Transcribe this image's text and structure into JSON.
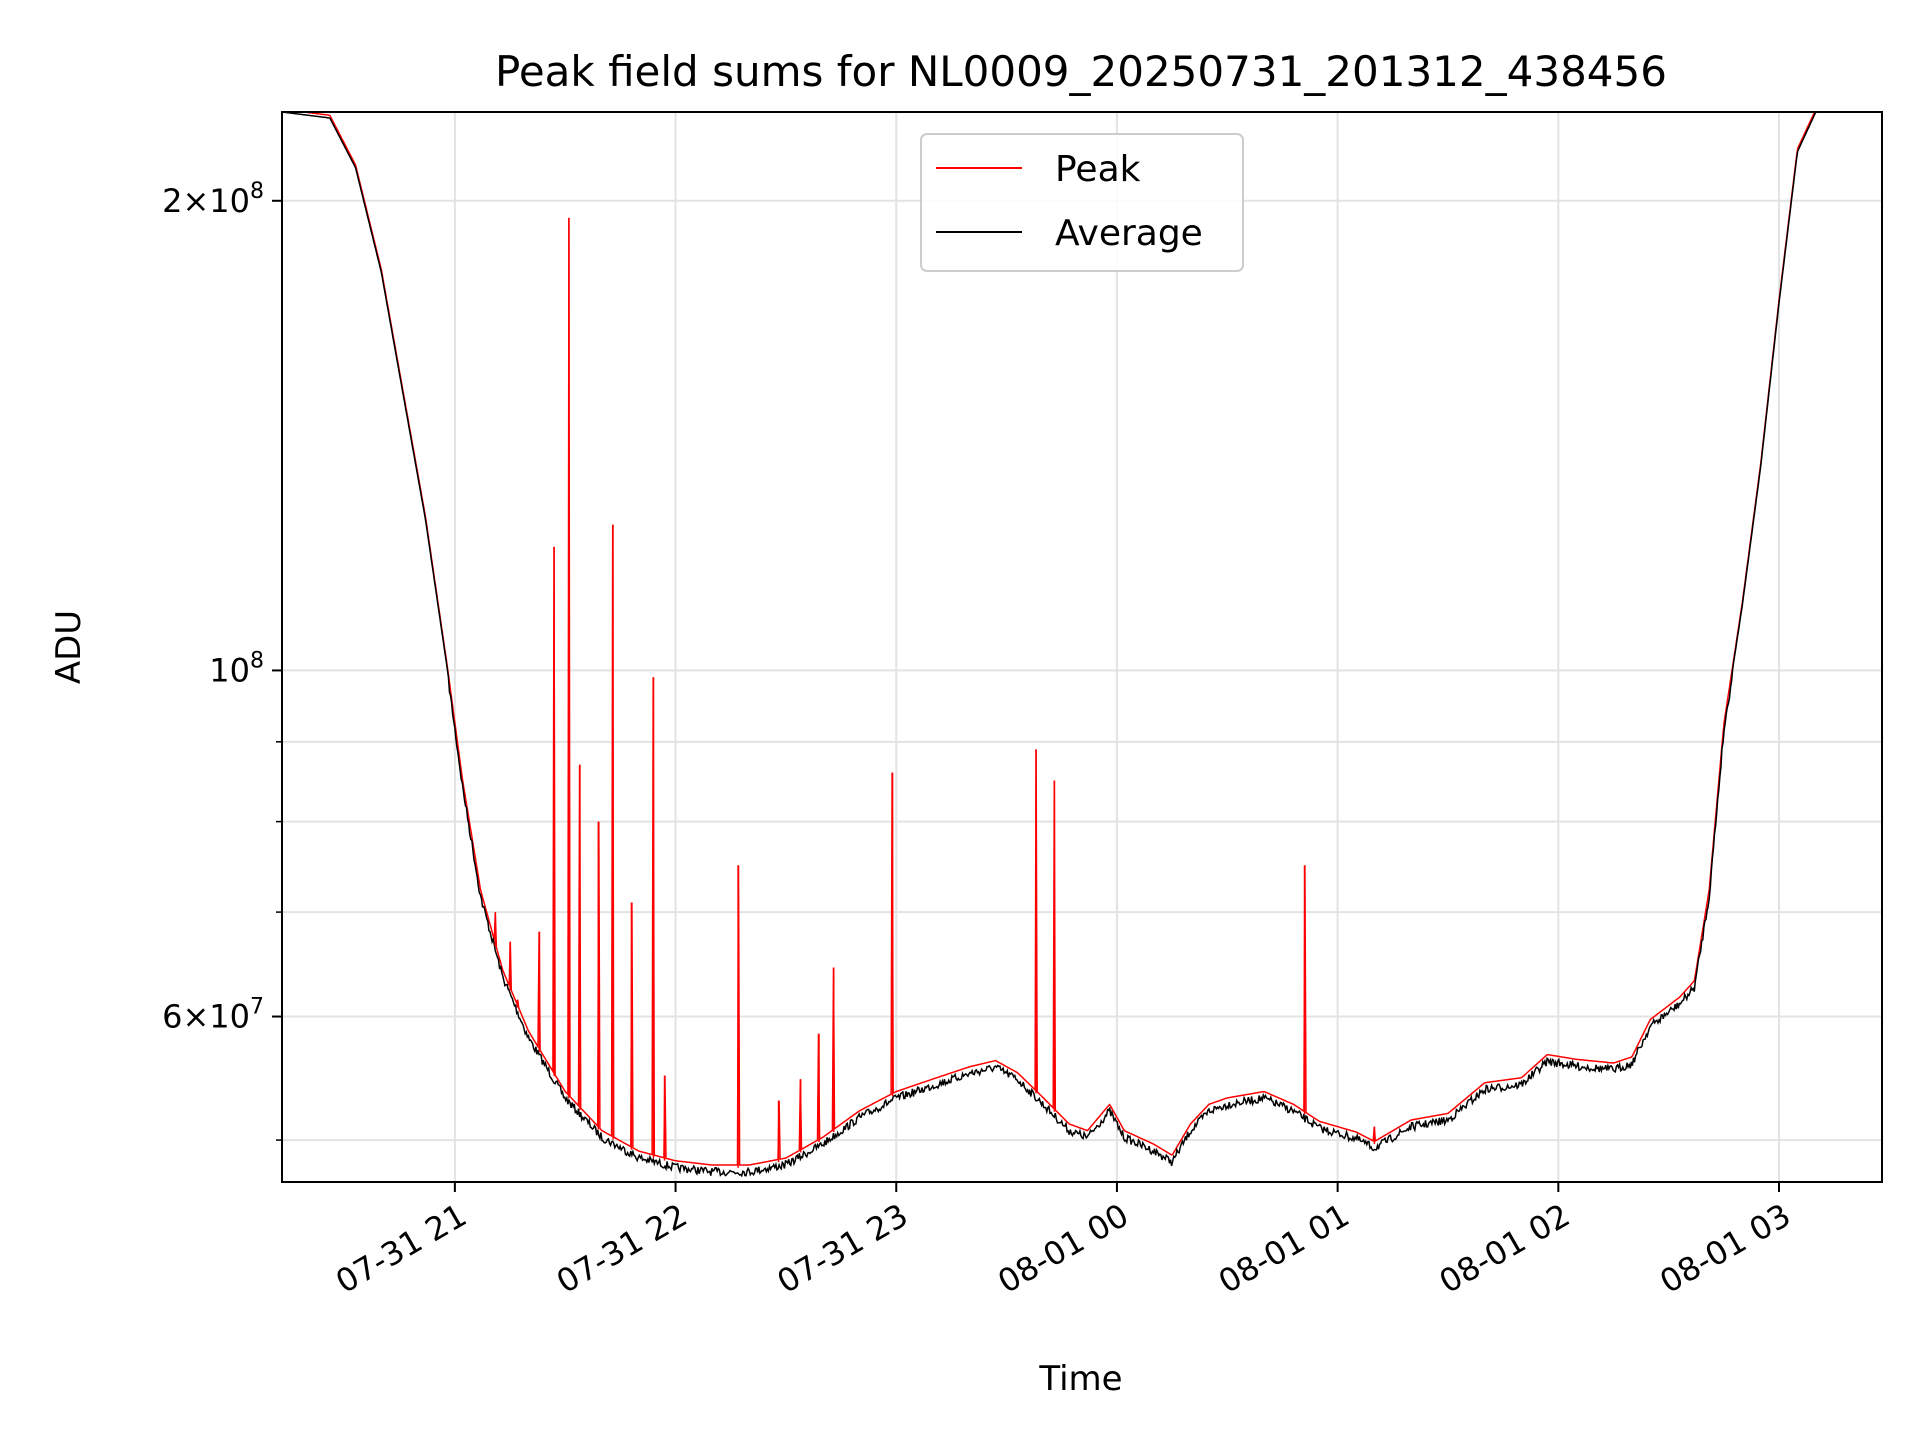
{
  "chart_data": {
    "type": "line",
    "title": "Peak field sums for NL0009_20250731_201312_438456",
    "xlabel": "Time",
    "ylabel": "ADU",
    "y_scale": "log",
    "ylim": [
      47000000,
      228000000
    ],
    "xlim": [
      "2025-07-31 20:13",
      "2025-08-01 03:28"
    ],
    "grid": true,
    "legend_position": "upper center",
    "x_ticks": [
      {
        "t": "2025-07-31 21:00",
        "label": "07-31 21"
      },
      {
        "t": "2025-07-31 22:00",
        "label": "07-31 22"
      },
      {
        "t": "2025-07-31 23:00",
        "label": "07-31 23"
      },
      {
        "t": "2025-08-01 00:00",
        "label": "08-01 00"
      },
      {
        "t": "2025-08-01 01:00",
        "label": "08-01 01"
      },
      {
        "t": "2025-08-01 02:00",
        "label": "08-01 02"
      },
      {
        "t": "2025-08-01 03:00",
        "label": "08-01 03"
      }
    ],
    "y_ticks_major": [
      {
        "value": 60000000,
        "base": "6",
        "exp": "7"
      },
      {
        "value": 100000000,
        "base": "",
        "exp": "8"
      },
      {
        "value": 200000000,
        "base": "2",
        "exp": "8"
      }
    ],
    "y_ticks_minor": [
      50000000,
      70000000,
      80000000,
      90000000
    ],
    "series": [
      {
        "name": "Average",
        "color": "#000000",
        "points": [
          [
            "2025-07-31 20:13",
            228000000
          ],
          [
            "2025-07-31 20:26",
            226000000
          ],
          [
            "2025-07-31 20:33",
            210000000
          ],
          [
            "2025-07-31 20:40",
            180000000
          ],
          [
            "2025-07-31 20:46",
            150000000
          ],
          [
            "2025-07-31 20:52",
            125000000
          ],
          [
            "2025-07-31 20:58",
            100000000
          ],
          [
            "2025-07-31 21:02",
            85000000
          ],
          [
            "2025-07-31 21:07",
            72000000
          ],
          [
            "2025-07-31 21:13",
            64000000
          ],
          [
            "2025-07-31 21:20",
            58500000
          ],
          [
            "2025-07-31 21:30",
            53500000
          ],
          [
            "2025-07-31 21:40",
            50500000
          ],
          [
            "2025-07-31 21:50",
            49000000
          ],
          [
            "2025-07-31 22:00",
            48300000
          ],
          [
            "2025-07-31 22:10",
            48000000
          ],
          [
            "2025-07-31 22:20",
            48000000
          ],
          [
            "2025-07-31 22:30",
            48500000
          ],
          [
            "2025-07-31 22:40",
            50000000
          ],
          [
            "2025-07-31 22:50",
            52000000
          ],
          [
            "2025-07-31 23:00",
            53500000
          ],
          [
            "2025-07-31 23:10",
            54500000
          ],
          [
            "2025-07-31 23:20",
            55500000
          ],
          [
            "2025-07-31 23:27",
            56000000
          ],
          [
            "2025-07-31 23:33",
            55000000
          ],
          [
            "2025-07-31 23:40",
            53000000
          ],
          [
            "2025-07-31 23:47",
            51000000
          ],
          [
            "2025-07-31 23:52",
            50500000
          ],
          [
            "2025-07-31 23:58",
            52500000
          ],
          [
            "2025-08-01 00:02",
            50500000
          ],
          [
            "2025-08-01 00:10",
            49500000
          ],
          [
            "2025-08-01 00:15",
            48700000
          ],
          [
            "2025-08-01 00:20",
            51000000
          ],
          [
            "2025-08-01 00:25",
            52500000
          ],
          [
            "2025-08-01 00:30",
            53000000
          ],
          [
            "2025-08-01 00:40",
            53500000
          ],
          [
            "2025-08-01 00:48",
            52500000
          ],
          [
            "2025-08-01 00:55",
            51200000
          ],
          [
            "2025-08-01 01:05",
            50400000
          ],
          [
            "2025-08-01 01:10",
            49700000
          ],
          [
            "2025-08-01 01:20",
            51300000
          ],
          [
            "2025-08-01 01:30",
            51800000
          ],
          [
            "2025-08-01 01:40",
            54200000
          ],
          [
            "2025-08-01 01:50",
            54600000
          ],
          [
            "2025-08-01 01:57",
            56500000
          ],
          [
            "2025-08-01 02:05",
            56100000
          ],
          [
            "2025-08-01 02:15",
            55800000
          ],
          [
            "2025-08-01 02:20",
            56300000
          ],
          [
            "2025-08-01 02:25",
            59500000
          ],
          [
            "2025-08-01 02:33",
            61500000
          ],
          [
            "2025-08-01 02:37",
            63000000
          ],
          [
            "2025-08-01 02:41",
            72000000
          ],
          [
            "2025-08-01 02:45",
            92000000
          ],
          [
            "2025-08-01 02:50",
            110000000
          ],
          [
            "2025-08-01 02:55",
            135000000
          ],
          [
            "2025-08-01 03:00",
            172000000
          ],
          [
            "2025-08-01 03:05",
            215000000
          ],
          [
            "2025-08-01 03:10",
            228000000
          ],
          [
            "2025-08-01 03:28",
            228000000
          ]
        ]
      },
      {
        "name": "Peak",
        "color": "#ff0000",
        "spikes": [
          [
            "2025-07-31 21:11",
            70000000
          ],
          [
            "2025-07-31 21:15",
            67000000
          ],
          [
            "2025-07-31 21:17",
            61500000
          ],
          [
            "2025-07-31 21:23",
            68000000
          ],
          [
            "2025-07-31 21:27",
            120000000
          ],
          [
            "2025-07-31 21:31",
            195000000
          ],
          [
            "2025-07-31 21:34",
            87000000
          ],
          [
            "2025-07-31 21:39",
            80000000
          ],
          [
            "2025-07-31 21:43",
            124000000
          ],
          [
            "2025-07-31 21:48",
            71000000
          ],
          [
            "2025-07-31 21:54",
            99000000
          ],
          [
            "2025-07-31 21:57",
            55000000
          ],
          [
            "2025-07-31 22:17",
            75000000
          ],
          [
            "2025-07-31 22:28",
            53000000
          ],
          [
            "2025-07-31 22:34",
            54700000
          ],
          [
            "2025-07-31 22:39",
            58500000
          ],
          [
            "2025-07-31 22:43",
            64500000
          ],
          [
            "2025-07-31 22:59",
            86000000
          ],
          [
            "2025-07-31 23:38",
            89000000
          ],
          [
            "2025-07-31 23:43",
            85000000
          ],
          [
            "2025-08-01 00:51",
            75000000
          ],
          [
            "2025-08-01 01:10",
            51000000
          ]
        ]
      }
    ]
  }
}
